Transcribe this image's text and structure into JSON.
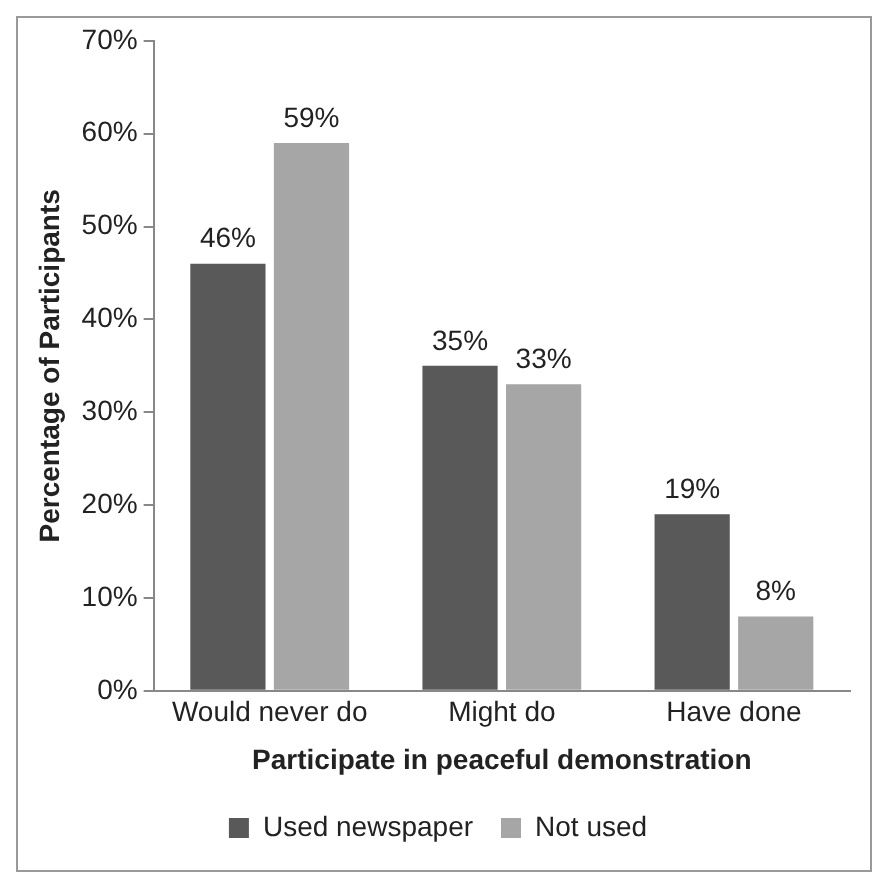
{
  "chart_data": {
    "type": "bar",
    "xlabel": "Participate in peaceful demonstration",
    "ylabel": "Percentage of Participants",
    "categories": [
      "Would never do",
      "Might do",
      "Have done"
    ],
    "series": [
      {
        "name": "Used newspaper",
        "color": "#595959",
        "values": [
          46,
          35,
          19
        ],
        "value_labels": [
          "46%",
          "35%",
          "19%"
        ]
      },
      {
        "name": "Not used",
        "color": "#a6a6a6",
        "values": [
          59,
          33,
          8
        ],
        "value_labels": [
          "59%",
          "33%",
          "8%"
        ]
      }
    ],
    "ylim": [
      0,
      70
    ],
    "yticks": [
      {
        "value": 0,
        "label": "0%"
      },
      {
        "value": 10,
        "label": "10%"
      },
      {
        "value": 20,
        "label": "20%"
      },
      {
        "value": 30,
        "label": "30%"
      },
      {
        "value": 40,
        "label": "40%"
      },
      {
        "value": 50,
        "label": "50%"
      },
      {
        "value": 60,
        "label": "60%"
      },
      {
        "value": 70,
        "label": "70%"
      }
    ],
    "grid": false,
    "legend": "bottom"
  }
}
